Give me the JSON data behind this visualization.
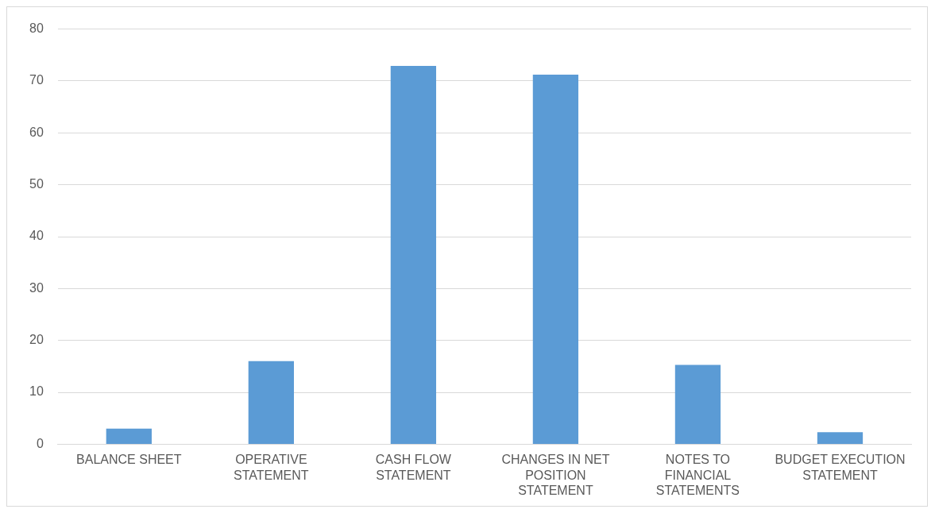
{
  "chart_data": {
    "type": "bar",
    "categories": [
      "BALANCE SHEET",
      "OPERATIVE STATEMENT",
      "CASH FLOW STATEMENT",
      "CHANGES IN NET POSITION STATEMENT",
      "NOTES TO FINANCIAL STATEMENTS",
      "BUDGET EXECUTION STATEMENT"
    ],
    "values": [
      3.0,
      16.0,
      72.9,
      71.2,
      15.3,
      2.3
    ],
    "color": "#5b9bd5",
    "ylim": [
      0,
      80
    ],
    "yticks": [
      0,
      10,
      20,
      30,
      40,
      50,
      60,
      70,
      80
    ],
    "grid": "y",
    "legend": false
  }
}
